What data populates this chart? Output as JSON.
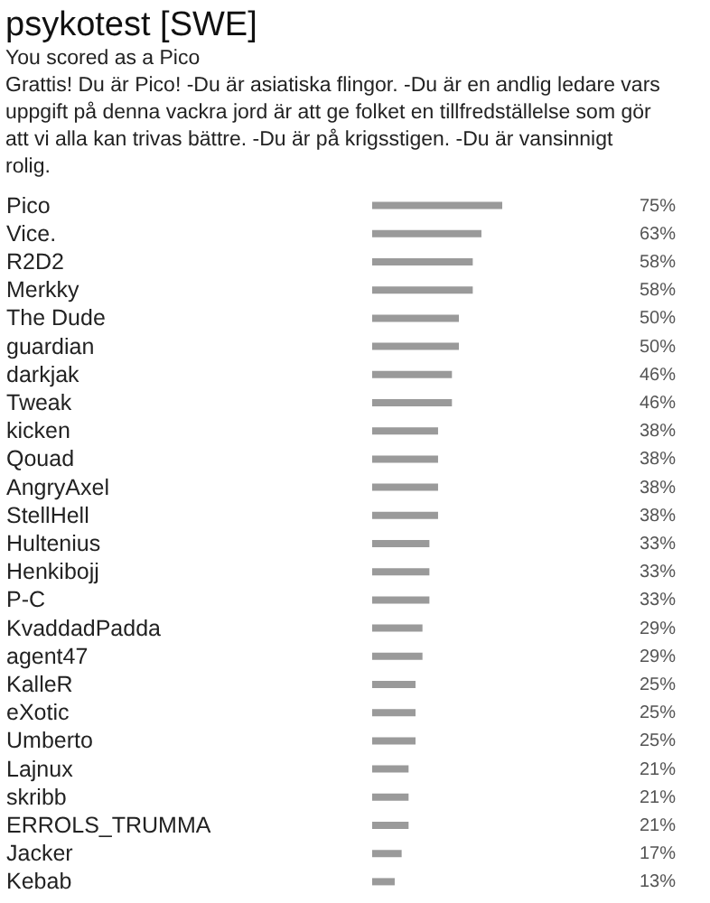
{
  "chart_data": {
    "type": "bar",
    "orientation": "horizontal",
    "title": "psykotest [SWE]",
    "subtitle": "You scored as a Pico",
    "annotations": [
      "Grattis! Du är Pico! -Du är asiatiska flingor. -Du är en andlig ledare vars uppgift på denna vackra jord är att ge folket en tillfredställelse som gör att vi alla kan trivas bättre. -Du är på krigsstigen. -Du är vansinnigt rolig."
    ],
    "categories": [
      "Pico",
      "Vice.",
      "R2D2",
      "Merkky",
      "The Dude",
      "guardian",
      "darkjak",
      "Tweak",
      "kicken",
      "Qouad",
      "AngryAxel",
      "StellHell",
      "Hultenius",
      "Henkibojj",
      "P-C",
      "KvaddadPadda",
      "agent47",
      "KalleR",
      "eXotic",
      "Umberto",
      "Lajnux",
      "skribb",
      "ERROLS_TRUMMA",
      "Jacker",
      "Kebab"
    ],
    "values": [
      75,
      63,
      58,
      58,
      50,
      50,
      46,
      46,
      38,
      38,
      38,
      38,
      33,
      33,
      33,
      29,
      29,
      25,
      25,
      25,
      21,
      21,
      21,
      17,
      13
    ],
    "value_labels": [
      "75%",
      "63%",
      "58%",
      "58%",
      "50%",
      "50%",
      "46%",
      "46%",
      "38%",
      "38%",
      "38%",
      "38%",
      "33%",
      "33%",
      "33%",
      "29%",
      "29%",
      "25%",
      "25%",
      "25%",
      "21%",
      "21%",
      "21%",
      "17%",
      "13%"
    ],
    "color": "#9a9a9a",
    "grid": false
  }
}
